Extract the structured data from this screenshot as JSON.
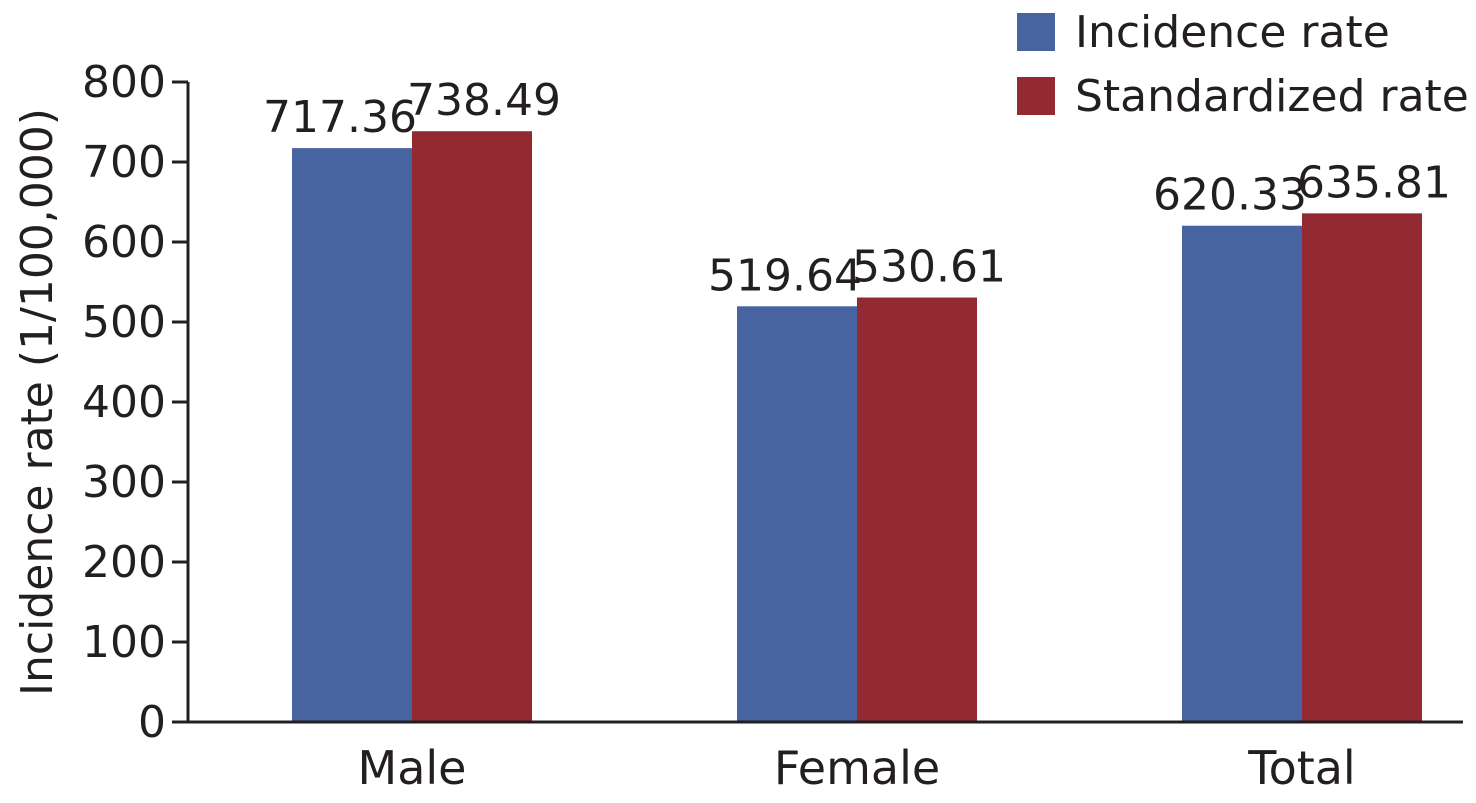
{
  "chart_data": {
    "type": "bar",
    "categories": [
      "Male",
      "Female",
      "Total"
    ],
    "series": [
      {
        "name": "Incidence rate",
        "values": [
          717.36,
          519.64,
          620.33
        ],
        "color": "#4763a0"
      },
      {
        "name": "Standardized rate",
        "values": [
          738.49,
          530.61,
          635.81
        ],
        "color": "#942a31"
      }
    ],
    "data_labels": [
      [
        "717.36",
        "519.64",
        "620.33"
      ],
      [
        "738.49",
        "530.61",
        "635.81"
      ]
    ],
    "title": "",
    "xlabel": "",
    "ylabel": "Incidence rate (1/100,000)",
    "ylim": [
      0,
      800
    ],
    "yticks": [
      0,
      100,
      200,
      300,
      400,
      500,
      600,
      700,
      800
    ],
    "ytick_labels": [
      "0",
      "100",
      "200",
      "300",
      "400",
      "500",
      "600",
      "700",
      "800"
    ],
    "grid": false,
    "legend_position": "top-right"
  }
}
